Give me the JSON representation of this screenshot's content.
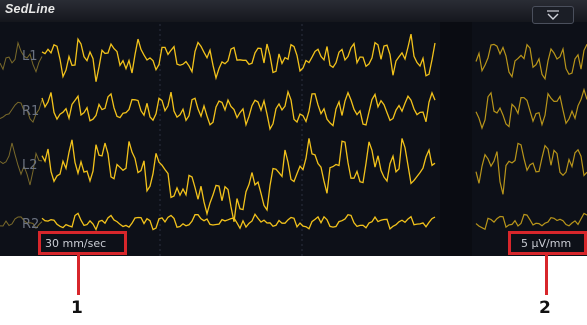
{
  "app": {
    "title": "SedLine"
  },
  "channels": [
    "L1",
    "R1",
    "L2",
    "R2"
  ],
  "scale": {
    "speed": "30 mm/sec",
    "amplitude": "5 µV/mm"
  },
  "callouts": [
    "1",
    "2"
  ],
  "colors": {
    "trace": "#f2c21b",
    "trace_dim": "#7a6a2a",
    "callout": "#d7262b",
    "background": "#0d1018"
  },
  "icons": {
    "menu": "chevron-down-icon"
  }
}
